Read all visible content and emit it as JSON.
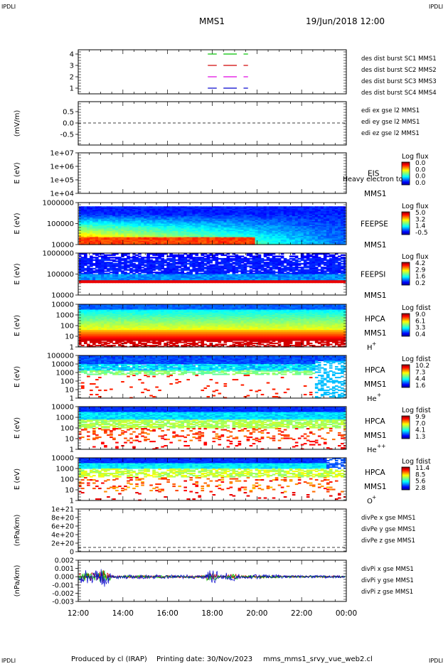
{
  "header": {
    "corner_tl": "IPDLI",
    "corner_tr": "IPDLI",
    "corner_bl": "IPDLI",
    "corner_br": "IPDLI",
    "spacecraft": "MMS1",
    "date": "19/Jun/2018 12:00"
  },
  "footer": {
    "producer": "Produced by cl (IRAP)",
    "printing": "Printing date: 30/Nov/2023",
    "script": "mms_mms1_srvy_vue_web2.cl"
  },
  "colors": {
    "black": "#000000",
    "red": "#d00000",
    "green": "#00c000",
    "blue": "#0000cc",
    "magenta": "#e000e0"
  },
  "chart_data": {
    "type": "multi-panel",
    "x_ticks": [
      "12:00",
      "14:00",
      "16:00",
      "18:00",
      "20:00",
      "22:00",
      "00:00"
    ],
    "panels": [
      {
        "id": "burst",
        "ylabel": "",
        "ticks": [
          "4",
          "3",
          "2",
          "1"
        ],
        "legend": [
          {
            "text": "des dist burst SC1 MMS1",
            "color": "#0000cc"
          },
          {
            "text": "des dist burst SC2 MMS2",
            "color": "#e000e0"
          },
          {
            "text": "des dist burst SC3 MMS3",
            "color": "#d00000"
          },
          {
            "text": "des dist burst SC4 MMS4",
            "color": "#00c000"
          }
        ],
        "segments": [
          {
            "level": 4,
            "color": "#00c000",
            "ranges": [
              [
                17.8,
                18.2
              ],
              [
                18.5,
                19.1
              ],
              [
                19.4,
                19.6
              ]
            ]
          },
          {
            "level": 3,
            "color": "#d00000",
            "ranges": [
              [
                17.8,
                18.2
              ],
              [
                18.5,
                19.1
              ],
              [
                19.4,
                19.6
              ]
            ]
          },
          {
            "level": 2,
            "color": "#e000e0",
            "ranges": [
              [
                17.8,
                18.2
              ],
              [
                18.5,
                19.1
              ],
              [
                19.4,
                19.6
              ]
            ]
          },
          {
            "level": 1,
            "color": "#0000cc",
            "ranges": [
              [
                17.8,
                18.2
              ],
              [
                18.5,
                19.1
              ],
              [
                19.4,
                19.6
              ]
            ]
          }
        ]
      },
      {
        "id": "edi",
        "ylabel": "(mV/m)",
        "ticks": [
          "0.5",
          "0.0",
          "-0.5"
        ],
        "legend": [
          {
            "text": "edi ex gse l2 MMS1",
            "color": "#d00000"
          },
          {
            "text": "edi ey gse l2 MMS1",
            "color": "#00c000"
          },
          {
            "text": "edi ez gse l2 MMS1",
            "color": "#0000cc"
          }
        ]
      },
      {
        "id": "eis",
        "ylabel": "E (eV)",
        "ticks": [
          "1e+07",
          "1e+06",
          "1e+05",
          "1e+04"
        ],
        "labels": [
          "EIS",
          "MMS1"
        ],
        "overlay": "Heavy electron to",
        "cbar_title": "Log flux",
        "cbar_values": [
          "0.0",
          "0.0",
          "0.0",
          "0.0"
        ]
      },
      {
        "id": "feepse",
        "ylabel": "E (eV)",
        "ticks": [
          "1000000",
          "100000",
          "10000"
        ],
        "labels": [
          "FEEPSE",
          "MMS1"
        ],
        "cbar_title": "Log flux",
        "cbar_values": [
          "5.0",
          "3.2",
          "1.4",
          "-0.5"
        ]
      },
      {
        "id": "feepsi",
        "ylabel": "E (eV)",
        "ticks": [
          "1000000",
          "100000",
          "10000"
        ],
        "labels": [
          "FEEPSI",
          "MMS1"
        ],
        "cbar_title": "Log flux",
        "cbar_values": [
          "4.2",
          "2.9",
          "1.6",
          "0.2"
        ]
      },
      {
        "id": "hpca_h",
        "ylabel": "E (eV)",
        "ticks": [
          "10000",
          "1000",
          "100",
          "10",
          "1"
        ],
        "labels": [
          "HPCA",
          "MMS1"
        ],
        "species": "H",
        "species_sup": "+",
        "cbar_title": "Log fdist",
        "cbar_values": [
          "9.0",
          "6.1",
          "3.3",
          "0.4"
        ]
      },
      {
        "id": "hpca_he",
        "ylabel": "E (eV)",
        "ticks": [
          "100000",
          "10000",
          "1000",
          "100",
          "10",
          "1"
        ],
        "labels": [
          "HPCA",
          "MMS1"
        ],
        "species": "He",
        "species_sup": "+",
        "cbar_title": "Log fdist",
        "cbar_values": [
          "10.2",
          "7.3",
          "4.4",
          "1.6"
        ]
      },
      {
        "id": "hpca_hepp",
        "ylabel": "E (eV)",
        "ticks": [
          "10000",
          "1000",
          "100",
          "10",
          "1"
        ],
        "labels": [
          "HPCA",
          "MMS1"
        ],
        "species": "He",
        "species_sup": "++",
        "cbar_title": "Log fdist",
        "cbar_values": [
          "9.9",
          "7.0",
          "4.1",
          "1.3"
        ]
      },
      {
        "id": "hpca_o",
        "ylabel": "E (eV)",
        "ticks": [
          "10000",
          "1000",
          "100",
          "10",
          "1"
        ],
        "labels": [
          "HPCA",
          "MMS1"
        ],
        "species": "O",
        "species_sup": "+",
        "cbar_title": "Log fdist",
        "cbar_values": [
          "11.4",
          "8.5",
          "5.6",
          "2.8"
        ]
      },
      {
        "id": "divpe",
        "ylabel": "(nPa/km)",
        "ticks": [
          "1e+21",
          "8e+20",
          "6e+20",
          "4e+20",
          "2e+20",
          "0"
        ],
        "legend": [
          {
            "text": "divPe x gse MMS1",
            "color": "#d00000"
          },
          {
            "text": "divPe y gse MMS1",
            "color": "#00c000"
          },
          {
            "text": "divPe z gse MMS1",
            "color": "#0000cc"
          }
        ]
      },
      {
        "id": "divpi",
        "ylabel": "(nPa/km)",
        "ticks": [
          "0.002",
          "0.001",
          "0.000",
          "-0.001",
          "-0.002",
          "-0.003"
        ],
        "legend": [
          {
            "text": "divPi x gse MMS1",
            "color": "#d00000"
          },
          {
            "text": "divPi y gse MMS1",
            "color": "#00c000"
          },
          {
            "text": "divPi z gse MMS1",
            "color": "#0000cc"
          }
        ]
      }
    ]
  }
}
